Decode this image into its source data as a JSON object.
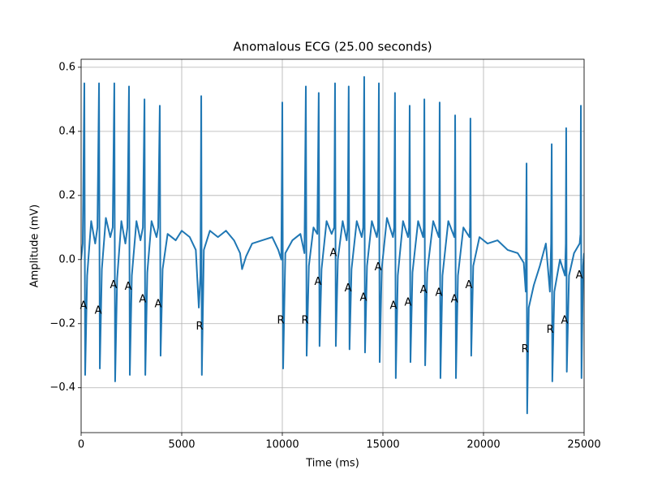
{
  "chart_data": {
    "type": "line",
    "title": "Anomalous ECG (25.00 seconds)",
    "xlabel": "Time (ms)",
    "ylabel": "Amplitude (mV)",
    "color": "#1f77b4",
    "grid": true,
    "xlim": [
      0,
      25000
    ],
    "ylim": [
      -0.54,
      0.625
    ],
    "xticks": [
      0,
      5000,
      10000,
      15000,
      20000,
      25000
    ],
    "yticks": [
      {
        "value": -0.4,
        "label": "−0.4"
      },
      {
        "value": -0.2,
        "label": "−0.2"
      },
      {
        "value": 0,
        "label": "0.0"
      },
      0.2,
      0.4,
      0.6
    ],
    "x": [
      0,
      80,
      160,
      200,
      300,
      500,
      700,
      810,
      890,
      930,
      1030,
      1230,
      1450,
      1570,
      1650,
      1690,
      1790,
      2000,
      2200,
      2300,
      2380,
      2420,
      2520,
      2750,
      2950,
      3070,
      3150,
      3190,
      3290,
      3500,
      3750,
      3830,
      3910,
      3950,
      4050,
      4300,
      4700,
      5000,
      5400,
      5700,
      5850,
      5930,
      5970,
      6000,
      6100,
      6400,
      6800,
      7200,
      7600,
      7900,
      8000,
      8200,
      8500,
      9000,
      9500,
      9800,
      9950,
      10000,
      10040,
      10150,
      10500,
      10900,
      11100,
      11170,
      11210,
      11320,
      11550,
      11740,
      11810,
      11850,
      11950,
      12200,
      12450,
      12580,
      12620,
      12660,
      12760,
      13000,
      13200,
      13250,
      13300,
      13340,
      13440,
      13700,
      13950,
      14020,
      14070,
      14110,
      14210,
      14450,
      14700,
      14760,
      14800,
      14840,
      14940,
      15200,
      15500,
      15560,
      15600,
      15640,
      15740,
      16000,
      16250,
      16300,
      16330,
      16370,
      16470,
      16750,
      17000,
      17030,
      17060,
      17100,
      17200,
      17500,
      17780,
      17800,
      17820,
      17860,
      17960,
      18250,
      18550,
      18570,
      18590,
      18630,
      18730,
      19000,
      19300,
      19330,
      19350,
      19390,
      19490,
      19800,
      20200,
      20700,
      21200,
      21700,
      22000,
      22100,
      22140,
      22170,
      22250,
      22500,
      22800,
      23100,
      23300,
      23360,
      23390,
      23420,
      23520,
      23800,
      24050,
      24090,
      24110,
      24140,
      24250,
      24500,
      24780,
      24820,
      24840,
      24870,
      24950,
      25000
    ],
    "values": [
      0.0,
      0.05,
      0.55,
      -0.36,
      -0.05,
      0.12,
      0.05,
      0.1,
      0.55,
      -0.34,
      -0.03,
      0.13,
      0.07,
      0.1,
      0.55,
      -0.38,
      -0.06,
      0.12,
      0.05,
      0.1,
      0.54,
      -0.36,
      -0.05,
      0.12,
      0.06,
      0.1,
      0.5,
      -0.36,
      -0.04,
      0.12,
      0.07,
      0.1,
      0.48,
      -0.3,
      -0.03,
      0.08,
      0.06,
      0.09,
      0.07,
      0.03,
      -0.15,
      -0.05,
      0.51,
      -0.36,
      0.03,
      0.09,
      0.07,
      0.09,
      0.06,
      0.02,
      -0.03,
      0.01,
      0.05,
      0.06,
      0.07,
      0.03,
      0.0,
      0.49,
      -0.34,
      0.02,
      0.06,
      0.08,
      0.02,
      0.54,
      -0.3,
      -0.02,
      0.1,
      0.08,
      0.52,
      -0.27,
      -0.03,
      0.12,
      0.08,
      0.1,
      0.55,
      -0.27,
      0.0,
      0.12,
      0.06,
      0.1,
      0.54,
      -0.28,
      -0.03,
      0.12,
      0.07,
      0.1,
      0.57,
      -0.29,
      -0.02,
      0.12,
      0.07,
      0.1,
      0.55,
      -0.32,
      -0.03,
      0.13,
      0.07,
      0.1,
      0.52,
      -0.37,
      -0.05,
      0.12,
      0.07,
      0.1,
      0.48,
      -0.32,
      -0.04,
      0.12,
      0.07,
      0.1,
      0.5,
      -0.33,
      -0.04,
      0.12,
      0.07,
      0.1,
      0.49,
      -0.37,
      -0.05,
      0.12,
      0.07,
      0.1,
      0.45,
      -0.37,
      -0.05,
      0.1,
      0.07,
      0.1,
      0.44,
      -0.3,
      -0.02,
      0.07,
      0.05,
      0.06,
      0.03,
      0.02,
      -0.01,
      -0.1,
      0.3,
      -0.48,
      -0.15,
      -0.08,
      -0.02,
      0.05,
      -0.1,
      0.05,
      0.36,
      -0.38,
      -0.1,
      0.0,
      -0.05,
      0.05,
      0.41,
      -0.35,
      -0.05,
      0.02,
      0.05,
      0.08,
      0.48,
      -0.37,
      -0.02,
      0.02
    ],
    "annotations": [
      {
        "x": 120,
        "y": -0.145,
        "text": "A"
      },
      {
        "x": 850,
        "y": -0.16,
        "text": "A"
      },
      {
        "x": 1610,
        "y": -0.08,
        "text": "A"
      },
      {
        "x": 2340,
        "y": -0.085,
        "text": "A"
      },
      {
        "x": 3060,
        "y": -0.125,
        "text": "A"
      },
      {
        "x": 3830,
        "y": -0.14,
        "text": "A"
      },
      {
        "x": 5890,
        "y": -0.21,
        "text": "R"
      },
      {
        "x": 9920,
        "y": -0.19,
        "text": "R"
      },
      {
        "x": 11130,
        "y": -0.19,
        "text": "R"
      },
      {
        "x": 11770,
        "y": -0.07,
        "text": "A"
      },
      {
        "x": 12540,
        "y": 0.02,
        "text": "A"
      },
      {
        "x": 13270,
        "y": -0.09,
        "text": "A"
      },
      {
        "x": 14030,
        "y": -0.12,
        "text": "A"
      },
      {
        "x": 14760,
        "y": -0.025,
        "text": "A"
      },
      {
        "x": 15520,
        "y": -0.145,
        "text": "A"
      },
      {
        "x": 16250,
        "y": -0.135,
        "text": "A"
      },
      {
        "x": 17020,
        "y": -0.095,
        "text": "A"
      },
      {
        "x": 17780,
        "y": -0.105,
        "text": "A"
      },
      {
        "x": 18550,
        "y": -0.125,
        "text": "A"
      },
      {
        "x": 19270,
        "y": -0.08,
        "text": "A"
      },
      {
        "x": 22060,
        "y": -0.28,
        "text": "R"
      },
      {
        "x": 23310,
        "y": -0.22,
        "text": "R"
      },
      {
        "x": 24030,
        "y": -0.19,
        "text": "A"
      },
      {
        "x": 24760,
        "y": -0.05,
        "text": "A"
      }
    ]
  }
}
